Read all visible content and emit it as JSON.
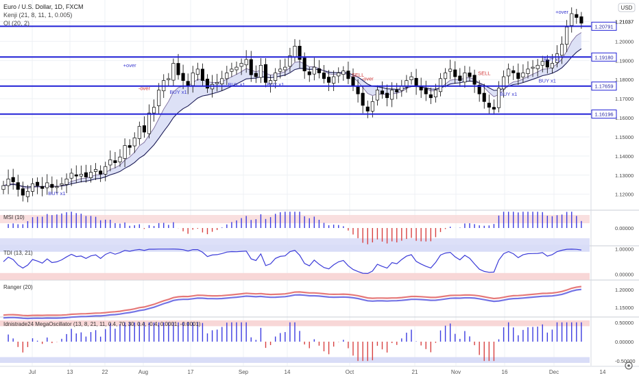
{
  "header": {
    "symbol": "Euro / U.S. Dollar, 1D, FXCM",
    "indicator_1": "Kenji (21, 8, 11, 1, 0.005)",
    "indicator_2": "OI (20, 2)",
    "currency_badge": "USD",
    "settings_icon": "gear-icon"
  },
  "colors": {
    "hline": "#1f1fd6",
    "up": "#ffffff",
    "down": "#000000",
    "band_fill": "#d7dcf5",
    "band_green": "#cfe8cf",
    "label_blue": "#3a3ad0",
    "label_red": "#d03030",
    "grid": "#eef0f4"
  },
  "chart_data": [
    {
      "type": "candlestick",
      "name": "main",
      "x_ticks": [
        "Jul",
        "13",
        "22",
        "Aug",
        "17",
        "Sep",
        "14",
        "Oct",
        "21",
        "Nov",
        "16",
        "Dec",
        "14"
      ],
      "y_ticks": [
        "1.21037",
        "1.20000",
        "1.19000",
        "1.18000",
        "1.17000",
        "1.16000",
        "1.15000",
        "1.14000",
        "1.13000",
        "1.12000"
      ],
      "ylim": [
        1.112,
        1.2195
      ],
      "horizontal_levels": [
        {
          "value": 1.20791,
          "label": "1.20791"
        },
        {
          "value": 1.1918,
          "label": "1.19180"
        },
        {
          "value": 1.17659,
          "label": "1.17659"
        },
        {
          "value": 1.16196,
          "label": "1.16196"
        }
      ],
      "highlight_price": "1.21037",
      "candles": {
        "count": 120,
        "close": [
          1.1245,
          1.128,
          1.1265,
          1.1225,
          1.1195,
          1.1215,
          1.1255,
          1.1245,
          1.123,
          1.126,
          1.1235,
          1.124,
          1.1255,
          1.128,
          1.131,
          1.1295,
          1.1305,
          1.129,
          1.1315,
          1.133,
          1.1305,
          1.1345,
          1.138,
          1.1365,
          1.1395,
          1.1455,
          1.1445,
          1.1495,
          1.1555,
          1.1525,
          1.1625,
          1.1655,
          1.1745,
          1.1795,
          1.1805,
          1.1885,
          1.1825,
          1.1795,
          1.1765,
          1.1835,
          1.1855,
          1.1795,
          1.1755,
          1.1775,
          1.1785,
          1.1805,
          1.1835,
          1.1855,
          1.1865,
          1.1885,
          1.1905,
          1.1825,
          1.1815,
          1.1875,
          1.1785,
          1.1795,
          1.1835,
          1.1855,
          1.1865,
          1.1925,
          1.1975,
          1.1905,
          1.1845,
          1.1825,
          1.1865,
          1.1835,
          1.1805,
          1.1785,
          1.1815,
          1.1835,
          1.1845,
          1.1805,
          1.1765,
          1.1725,
          1.1665,
          1.1635,
          1.1685,
          1.1745,
          1.1725,
          1.1705,
          1.1745,
          1.1735,
          1.1765,
          1.1795,
          1.1815,
          1.1765,
          1.1745,
          1.1725,
          1.1705,
          1.1745,
          1.1805,
          1.1835,
          1.1855,
          1.1815,
          1.1795,
          1.1835,
          1.1815,
          1.1775,
          1.1725,
          1.1685,
          1.1655,
          1.1645,
          1.1755,
          1.1815,
          1.1855,
          1.1835,
          1.1805,
          1.1835,
          1.1855,
          1.1865,
          1.1875,
          1.1895,
          1.1865,
          1.1885,
          1.1935,
          1.1985,
          1.2075,
          1.2145,
          1.2125,
          1.2095
        ]
      },
      "annotations": [
        {
          "text": "BUY x1",
          "idx": 11,
          "value": 1.1195,
          "color": "blue"
        },
        {
          "text": "+over",
          "idx": 26,
          "value": 1.1865,
          "color": "blue"
        },
        {
          "text": "-over",
          "idx": 29,
          "value": 1.1745,
          "color": "red"
        },
        {
          "text": "BUY x1",
          "idx": 36,
          "value": 1.1725,
          "color": "blue"
        },
        {
          "text": "BUY x1",
          "idx": 48,
          "value": 1.1765,
          "color": "blue"
        },
        {
          "text": "BUY x1",
          "idx": 56,
          "value": 1.1765,
          "color": "blue"
        },
        {
          "text": "SELL",
          "idx": 73,
          "value": 1.1815,
          "color": "red"
        },
        {
          "text": "-over",
          "idx": 75,
          "value": 1.1795,
          "color": "red"
        },
        {
          "text": "SELL",
          "idx": 99,
          "value": 1.1825,
          "color": "red"
        },
        {
          "text": "BUY x1",
          "idx": 104,
          "value": 1.1715,
          "color": "blue"
        },
        {
          "text": "BUY x1",
          "idx": 112,
          "value": 1.1785,
          "color": "blue"
        },
        {
          "text": "BUY x1",
          "idx": 113,
          "value": 1.1895,
          "color": "blue"
        },
        {
          "text": "+over",
          "idx": 115,
          "value": 1.2145,
          "color": "blue"
        }
      ]
    },
    {
      "type": "bar",
      "name": "MSI (10)",
      "title": "MSI (10)",
      "y_ticks": [
        "0.00000"
      ],
      "ylim": [
        -1,
        1
      ]
    },
    {
      "type": "line",
      "name": "TDI (13, 21)",
      "title": "TDI (13, 21)",
      "y_ticks": [
        "1.00000",
        "0.00000"
      ],
      "ylim": [
        -0.2,
        1.1
      ]
    },
    {
      "type": "line",
      "name": "Ranger (20)",
      "title": "Ranger (20)",
      "y_ticks": [
        "1.20000",
        "1.15000"
      ],
      "ylim": [
        1.125,
        1.225
      ]
    },
    {
      "type": "bar",
      "name": "Idnistrade24 MegaOscillator",
      "title": "Idnistrade24 MegaOscillator (13, 8, 21, 11, 0.4, 70, 30, 0.4, -0.4, 0.0001, -0.0001)",
      "y_ticks": [
        "0.50000",
        "0.00000",
        "-0.50000"
      ],
      "ylim": [
        -0.62,
        0.62
      ]
    }
  ]
}
